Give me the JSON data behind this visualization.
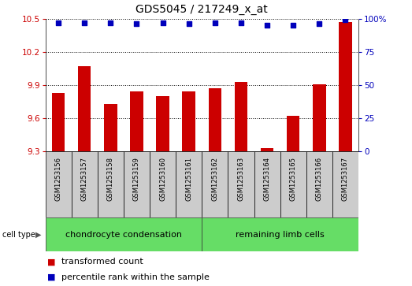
{
  "title": "GDS5045 / 217249_x_at",
  "samples": [
    "GSM1253156",
    "GSM1253157",
    "GSM1253158",
    "GSM1253159",
    "GSM1253160",
    "GSM1253161",
    "GSM1253162",
    "GSM1253163",
    "GSM1253164",
    "GSM1253165",
    "GSM1253166",
    "GSM1253167"
  ],
  "transformed_count": [
    9.83,
    10.07,
    9.73,
    9.84,
    9.8,
    9.84,
    9.87,
    9.93,
    9.33,
    9.62,
    9.91,
    10.47
  ],
  "percentile_rank": [
    97,
    97,
    97,
    96,
    97,
    96,
    97,
    97,
    95,
    95,
    96,
    99
  ],
  "ylim_left": [
    9.3,
    10.5
  ],
  "ylim_right": [
    0,
    100
  ],
  "yticks_left": [
    9.3,
    9.6,
    9.9,
    10.2,
    10.5
  ],
  "yticks_right": [
    0,
    25,
    50,
    75,
    100
  ],
  "cell_type_groups": [
    {
      "label": "chondrocyte condensation",
      "start": 0,
      "end": 5,
      "color": "#66DD66"
    },
    {
      "label": "remaining limb cells",
      "start": 6,
      "end": 11,
      "color": "#66DD66"
    }
  ],
  "bar_color": "#CC0000",
  "dot_color": "#0000BB",
  "bar_width": 0.5,
  "ylabel_left_color": "#CC0000",
  "ylabel_right_color": "#0000BB",
  "grid_color": "#000000",
  "cell_type_row_color": "#cccccc",
  "legend_square_size": 60,
  "title_fontsize": 10,
  "tick_fontsize": 7.5,
  "sample_fontsize": 6,
  "celltype_fontsize": 8,
  "legend_fontsize": 8
}
